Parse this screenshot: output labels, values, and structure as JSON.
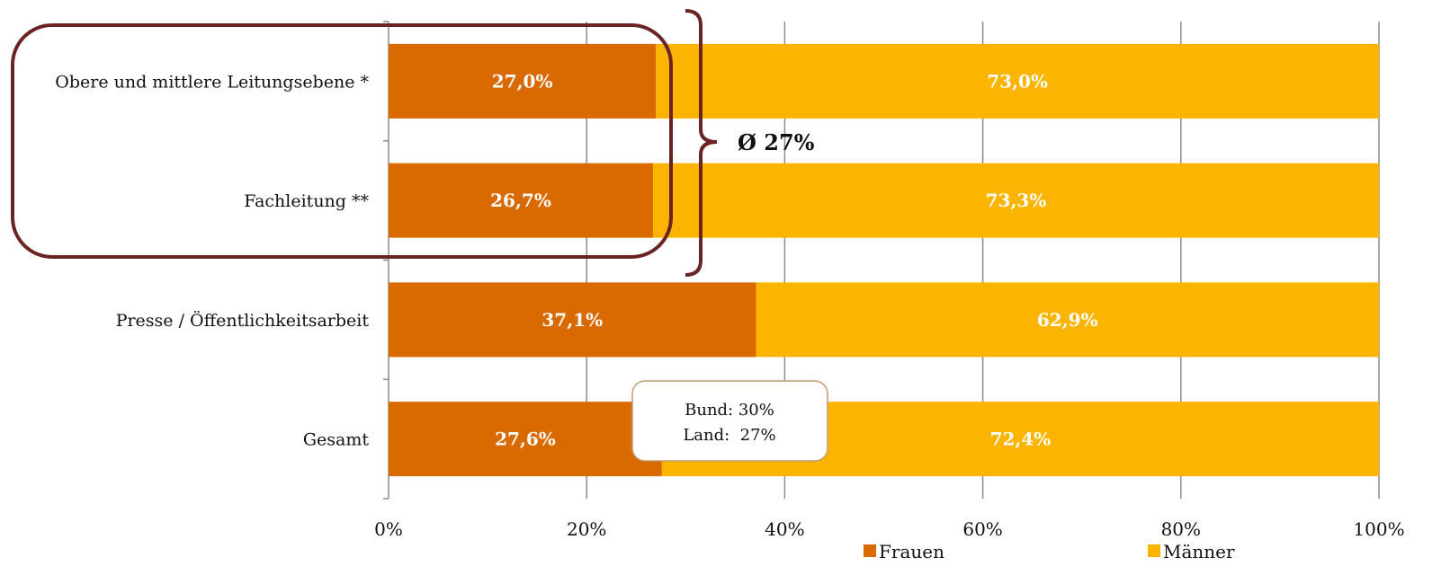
{
  "chart_data": {
    "type": "bar",
    "orientation": "horizontal",
    "stacked": true,
    "normalized_percent": true,
    "categories": [
      "Obere und mittlere Leitungsebene *",
      "Fachleitung **",
      "Presse / Öffentlichkeitsarbeit",
      "Gesamt"
    ],
    "series": [
      {
        "name": "Frauen",
        "color": "#D96A00",
        "values": [
          27.0,
          26.7,
          37.1,
          27.6
        ],
        "labels": [
          "27,0%",
          "26,7%",
          "37,1%",
          "27,6%"
        ]
      },
      {
        "name": "Männer",
        "color": "#FBB500",
        "values": [
          73.0,
          73.3,
          62.9,
          72.4
        ],
        "labels": [
          "73,0%",
          "73,3%",
          "62,9%",
          "72,4%"
        ]
      }
    ],
    "xlim": [
      0,
      100
    ],
    "xticks": [
      0,
      20,
      40,
      60,
      80,
      100
    ],
    "xtick_labels": [
      "0%",
      "20%",
      "40%",
      "60%",
      "80%",
      "100%"
    ],
    "grid": "vertical",
    "legend_position": "bottom",
    "annotations": {
      "average": "Ø 27%",
      "note_lines": [
        "Bund: 30%",
        "Land:  27%"
      ]
    },
    "highlight_color": "#6B2424",
    "title": "",
    "xlabel": "",
    "ylabel": ""
  }
}
